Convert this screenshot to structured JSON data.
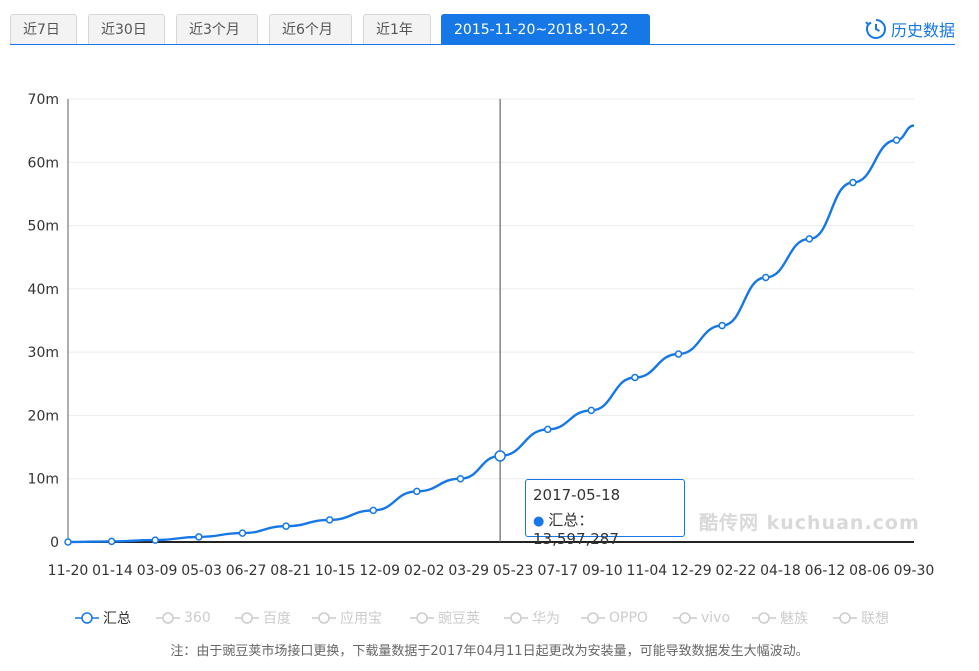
{
  "tabs": [
    {
      "label": "近7日",
      "active": false
    },
    {
      "label": "近30日",
      "active": false
    },
    {
      "label": "近3个月",
      "active": false
    },
    {
      "label": "近6个月",
      "active": false
    },
    {
      "label": "近1年",
      "active": false
    },
    {
      "label": "2015-11-20~2018-10-22",
      "active": true
    }
  ],
  "history_link": "历史数据",
  "tooltip": {
    "date": "2017-05-18",
    "series": "汇总",
    "value_text": "13,597,287"
  },
  "watermark": "酷传网 kuchuan.com",
  "note": "注：由于豌豆荚市场接口更换，下载量数据于2017年04月11日起更改为安装量，可能导致数据发生大幅波动。",
  "colors": {
    "accent": "#1677e6",
    "inactive": "#cccccc"
  },
  "chart_data": {
    "type": "line",
    "ylim": [
      0,
      70000000
    ],
    "y_ticks": [
      0,
      10000000,
      20000000,
      30000000,
      40000000,
      50000000,
      60000000,
      70000000
    ],
    "y_tick_labels": [
      "0",
      "10m",
      "20m",
      "30m",
      "40m",
      "50m",
      "60m",
      "70m"
    ],
    "x_tick_labels": [
      "11-20",
      "01-14",
      "03-09",
      "05-03",
      "06-27",
      "08-21",
      "10-15",
      "12-09",
      "02-02",
      "03-29",
      "05-23",
      "07-17",
      "09-10",
      "11-04",
      "12-29",
      "02-22",
      "04-18",
      "06-12",
      "08-06",
      "09-30"
    ],
    "highlight_index": 10,
    "series": [
      {
        "name": "汇总",
        "active": true,
        "x": [
          "2015-11-20",
          "2016-01-14",
          "2016-03-09",
          "2016-05-03",
          "2016-06-27",
          "2016-08-21",
          "2016-10-15",
          "2016-12-09",
          "2017-02-02",
          "2017-03-29",
          "2017-05-18",
          "2017-07-17",
          "2017-09-10",
          "2017-11-04",
          "2017-12-29",
          "2018-02-22",
          "2018-04-18",
          "2018-06-12",
          "2018-08-06",
          "2018-09-30",
          "2018-10-22"
        ],
        "values": [
          0,
          100000,
          300000,
          800000,
          1400000,
          2500000,
          3500000,
          5000000,
          8000000,
          10000000,
          13597287,
          17800000,
          20800000,
          26000000,
          29700000,
          34200000,
          41800000,
          47900000,
          56800000,
          63500000,
          65800000
        ]
      },
      {
        "name": "360",
        "active": false
      },
      {
        "name": "百度",
        "active": false
      },
      {
        "name": "应用宝",
        "active": false
      },
      {
        "name": "豌豆荚",
        "active": false
      },
      {
        "name": "华为",
        "active": false
      },
      {
        "name": "OPPO",
        "active": false
      },
      {
        "name": "vivo",
        "active": false
      },
      {
        "name": "魅族",
        "active": false
      },
      {
        "name": "联想",
        "active": false
      }
    ]
  }
}
